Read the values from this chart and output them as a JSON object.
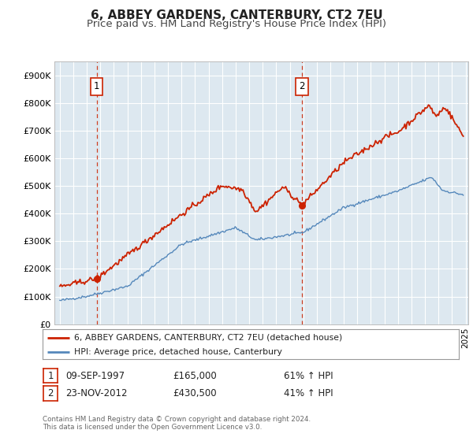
{
  "title": "6, ABBEY GARDENS, CANTERBURY, CT2 7EU",
  "subtitle": "Price paid vs. HM Land Registry's House Price Index (HPI)",
  "ylim": [
    0,
    950000
  ],
  "yticks": [
    0,
    100000,
    200000,
    300000,
    400000,
    500000,
    600000,
    700000,
    800000,
    900000
  ],
  "ytick_labels": [
    "£0",
    "£100K",
    "£200K",
    "£300K",
    "£400K",
    "£500K",
    "£600K",
    "£700K",
    "£800K",
    "£900K"
  ],
  "hpi_color": "#5588bb",
  "price_color": "#cc2200",
  "vline_color": "#cc2200",
  "plot_bg_color": "#dde8f0",
  "marker1_year": 1997.72,
  "marker1_price": 165000,
  "marker2_year": 2012.9,
  "marker2_price": 430500,
  "legend_line1": "6, ABBEY GARDENS, CANTERBURY, CT2 7EU (detached house)",
  "legend_line2": "HPI: Average price, detached house, Canterbury",
  "annotation1_date": "09-SEP-1997",
  "annotation1_price": "£165,000",
  "annotation1_hpi": "61% ↑ HPI",
  "annotation2_date": "23-NOV-2012",
  "annotation2_price": "£430,500",
  "annotation2_hpi": "41% ↑ HPI",
  "footer": "Contains HM Land Registry data © Crown copyright and database right 2024.\nThis data is licensed under the Open Government Licence v3.0.",
  "background_color": "#ffffff",
  "grid_color": "#ffffff",
  "title_fontsize": 11,
  "subtitle_fontsize": 9.5
}
